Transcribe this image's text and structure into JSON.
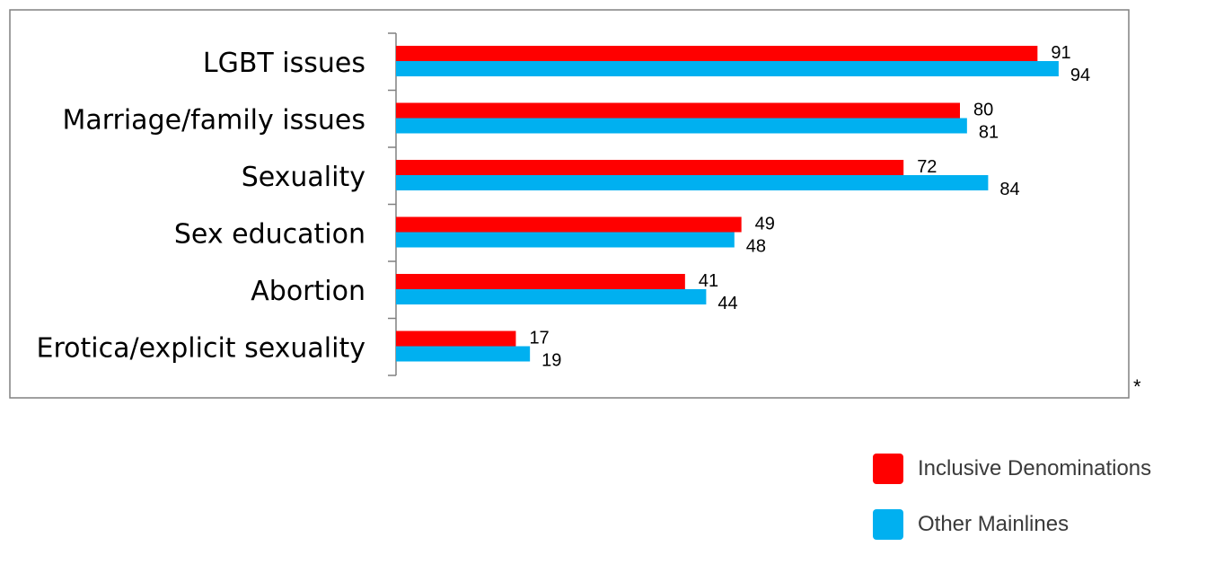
{
  "chart_data": {
    "type": "bar",
    "orientation": "horizontal",
    "categories": [
      "LGBT issues",
      "Marriage/family issues",
      "Sexuality",
      "Sex education",
      "Abortion",
      "Erotica/explicit sexuality"
    ],
    "series": [
      {
        "name": "Inclusive Denominations",
        "color": "#ff0000",
        "values": [
          91,
          80,
          72,
          49,
          41,
          17
        ]
      },
      {
        "name": "Other Mainlines",
        "color": "#00b0f0",
        "values": [
          94,
          81,
          84,
          48,
          44,
          19
        ]
      }
    ],
    "xlim": [
      0,
      100
    ],
    "grid": false,
    "legend_position": "bottom-right",
    "footnote": "*"
  }
}
